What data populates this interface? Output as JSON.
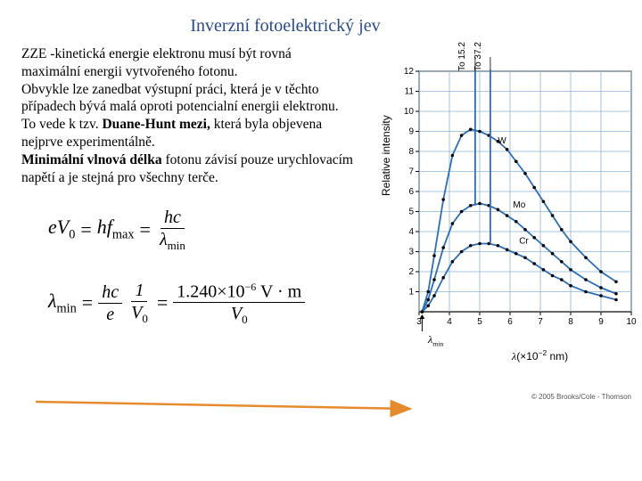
{
  "title": "Inverzní fotoelektrický jev",
  "paragraph": {
    "p1": "ZZE -kinetická energie elektronu musí být rovná maximální energii vytvořeného fotonu.",
    "p2": "Obvykle lze zanedbat výstupní práci, která je v těchto případech bývá malá oproti potencialní energii elektronu.",
    "p3a": "To vede k tzv. ",
    "p3b": "Duane-Hunt mezi,",
    "p3c": " která byla objevena nejprve experimentálně.",
    "p4a": "Minimální vlnová délka",
    "p4b": " fotonu závisí pouze urychlovacím napětí a je stejná pro všechny terče."
  },
  "formula1": {
    "lhs_e": "e",
    "lhs_V": "V",
    "lhs_sub": "0",
    "eq": "=",
    "mid_h": "h",
    "mid_f": "f",
    "mid_sub": "max",
    "rhs_num": "hc",
    "rhs_den_lam": "λ",
    "rhs_den_sub": "min"
  },
  "formula2": {
    "lhs_lam": "λ",
    "lhs_sub": "min",
    "eq": "=",
    "f1_num": "hc",
    "f1_den": "e",
    "f2_num": "1",
    "f2_den_V": "V",
    "f2_den_sub": "0",
    "rhs_num_val": "1.240×10",
    "rhs_num_exp": "−6",
    "rhs_num_unit": " V · m",
    "rhs_den_V": "V",
    "rhs_den_sub": "0"
  },
  "chart": {
    "ylabel": "Relative intensity",
    "xlabel_lam": "λ",
    "xlabel_rest": "(×10",
    "xlabel_exp": "−2",
    "xlabel_unit": " nm)",
    "lambda_min_lam": "λ",
    "lambda_min_sub": "min",
    "xlim": [
      3,
      10
    ],
    "ylim": [
      0,
      12
    ],
    "xticks": [
      3,
      4,
      5,
      6,
      7,
      8,
      9,
      10
    ],
    "yticks": [
      1,
      2,
      3,
      4,
      5,
      6,
      7,
      8,
      9,
      10,
      11,
      12
    ],
    "grid_color": "#8db4d8",
    "axis_color": "#000000",
    "curve_color": "#2e6db4",
    "point_color": "#000000",
    "background": "#ffffff",
    "series": [
      {
        "label": "W",
        "label_x": 5.6,
        "label_y": 8.4,
        "points": [
          [
            3.1,
            0
          ],
          [
            3.3,
            1.0
          ],
          [
            3.5,
            2.8
          ],
          [
            3.8,
            5.6
          ],
          [
            4.1,
            7.8
          ],
          [
            4.4,
            8.8
          ],
          [
            4.7,
            9.1
          ],
          [
            5.0,
            9.0
          ],
          [
            5.3,
            8.8
          ],
          [
            5.6,
            8.5
          ],
          [
            5.9,
            8.1
          ],
          [
            6.2,
            7.5
          ],
          [
            6.5,
            6.9
          ],
          [
            6.8,
            6.2
          ],
          [
            7.1,
            5.5
          ],
          [
            7.4,
            4.8
          ],
          [
            7.7,
            4.1
          ],
          [
            8.0,
            3.5
          ],
          [
            8.5,
            2.7
          ],
          [
            9.0,
            2.0
          ],
          [
            9.5,
            1.5
          ]
        ]
      },
      {
        "label": "Mo",
        "label_x": 6.1,
        "label_y": 5.2,
        "peak": [
          4.85,
          12.5
        ],
        "points": [
          [
            3.1,
            0
          ],
          [
            3.3,
            0.6
          ],
          [
            3.5,
            1.6
          ],
          [
            3.8,
            3.2
          ],
          [
            4.1,
            4.4
          ],
          [
            4.4,
            5.0
          ],
          [
            4.7,
            5.3
          ],
          [
            5.0,
            5.4
          ],
          [
            5.3,
            5.3
          ],
          [
            5.6,
            5.1
          ],
          [
            5.9,
            4.8
          ],
          [
            6.2,
            4.5
          ],
          [
            6.5,
            4.1
          ],
          [
            6.8,
            3.7
          ],
          [
            7.1,
            3.3
          ],
          [
            7.4,
            2.9
          ],
          [
            7.7,
            2.5
          ],
          [
            8.0,
            2.1
          ],
          [
            8.5,
            1.6
          ],
          [
            9.0,
            1.2
          ],
          [
            9.5,
            0.9
          ]
        ]
      },
      {
        "label": "Cr",
        "label_x": 6.3,
        "label_y": 3.4,
        "peak": [
          5.35,
          12.5
        ],
        "points": [
          [
            3.1,
            0
          ],
          [
            3.3,
            0.3
          ],
          [
            3.5,
            0.8
          ],
          [
            3.8,
            1.7
          ],
          [
            4.1,
            2.5
          ],
          [
            4.4,
            3.0
          ],
          [
            4.7,
            3.3
          ],
          [
            5.0,
            3.4
          ],
          [
            5.3,
            3.4
          ],
          [
            5.6,
            3.3
          ],
          [
            5.9,
            3.1
          ],
          [
            6.2,
            2.9
          ],
          [
            6.5,
            2.7
          ],
          [
            6.8,
            2.4
          ],
          [
            7.1,
            2.1
          ],
          [
            7.4,
            1.8
          ],
          [
            7.7,
            1.6
          ],
          [
            8.0,
            1.3
          ],
          [
            8.5,
            1.0
          ],
          [
            9.0,
            0.8
          ],
          [
            9.5,
            0.6
          ]
        ]
      }
    ],
    "to_labels": [
      {
        "text": "To 15.2",
        "x": 4.85
      },
      {
        "text": "To 37.2",
        "x": 5.35
      }
    ]
  },
  "arrow": {
    "color": "#e68a2e",
    "width": 2.5
  },
  "copyright": "© 2005 Brooks/Cole - Thomson"
}
